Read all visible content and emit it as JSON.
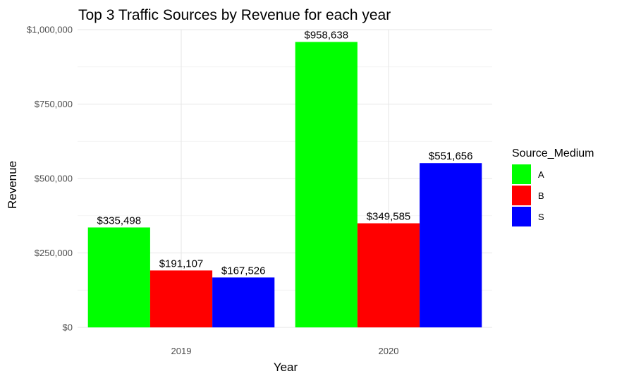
{
  "chart_data": {
    "type": "bar",
    "title": "Top 3 Traffic Sources by Revenue for each year",
    "xlabel": "Year",
    "ylabel": "Revenue",
    "categories": [
      "2019",
      "2020"
    ],
    "series": [
      {
        "name": "A",
        "color": "#00ff00",
        "values": [
          335498,
          958638
        ],
        "labels": [
          "$335,498",
          "$958,638"
        ]
      },
      {
        "name": "B",
        "color": "#ff0000",
        "values": [
          191107,
          349585
        ],
        "labels": [
          "$191,107",
          "$349,585"
        ]
      },
      {
        "name": "S",
        "color": "#0000ff",
        "values": [
          167526,
          551656
        ],
        "labels": [
          "$167,526",
          "$551,656"
        ]
      }
    ],
    "ylim": [
      0,
      1000000
    ],
    "yticks": [
      0,
      250000,
      500000,
      750000,
      1000000
    ],
    "ytick_labels": [
      "$0",
      "$250,000",
      "$500,000",
      "$750,000",
      "$1,000,000"
    ],
    "legend_title": "Source_Medium",
    "legend_position": "right",
    "grid": true
  }
}
